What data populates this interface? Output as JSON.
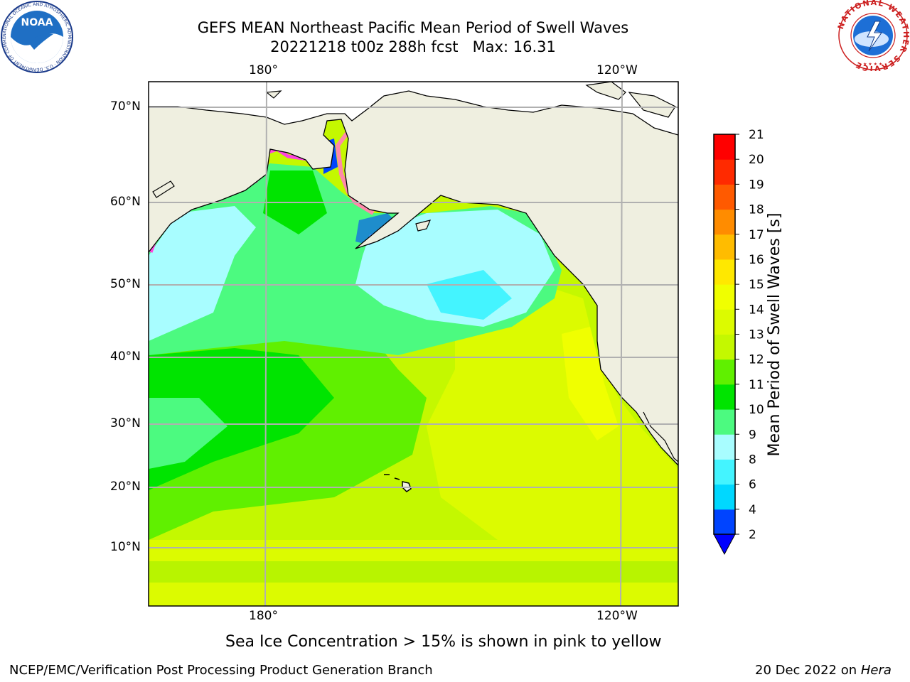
{
  "chart_data": {
    "type": "heatmap",
    "title": "GEFS MEAN Northeast Pacific Mean Period of Swell Waves",
    "subtitle": "20221218 t00z 288h fcst   Max: 16.31",
    "x_ticks_top": [
      "180°",
      "120°W"
    ],
    "x_ticks_bottom": [
      "180°",
      "120°W"
    ],
    "y_ticks": [
      "70°N",
      "60°N",
      "50°N",
      "40°N",
      "30°N",
      "20°N",
      "10°N"
    ],
    "colorbar": {
      "label": "Mean Period of Swell Waves [s]",
      "ticks": [
        "2",
        "4",
        "6",
        "8",
        "9",
        "10",
        "11",
        "12",
        "13",
        "14",
        "15",
        "16",
        "17",
        "18",
        "19",
        "20",
        "21"
      ],
      "colors": [
        "#0044ff",
        "#00d8ff",
        "#44f4ff",
        "#a8fdff",
        "#4cfa80",
        "#00e400",
        "#60f000",
        "#c4f800",
        "#dcfb00",
        "#f0ff00",
        "#ffe800",
        "#ffbc00",
        "#ff8c00",
        "#ff5a00",
        "#ff2a00",
        "#ff0000"
      ],
      "under_color": "#0000ff"
    },
    "grid": true,
    "max_value": 16.31
  },
  "map": {
    "land_color": "#efefe0",
    "ocean_default": "#c4f800"
  },
  "note": "Sea Ice Concentration > 15% is shown in pink to yellow",
  "footer": {
    "left": "NCEP/EMC/Verification Post Processing Product Generation Branch",
    "right_date": "20 Dec 2022 on ",
    "right_host": "Hera"
  },
  "logos": {
    "noaa_text": "NOAA",
    "noaa_ring": "NATIONAL OCEANIC AND ATMOSPHERIC ADMINISTRATION · U.S. DEPARTMENT OF COMMERCE ·",
    "nws_ring": "NATIONAL WEATHER SERVICE"
  }
}
